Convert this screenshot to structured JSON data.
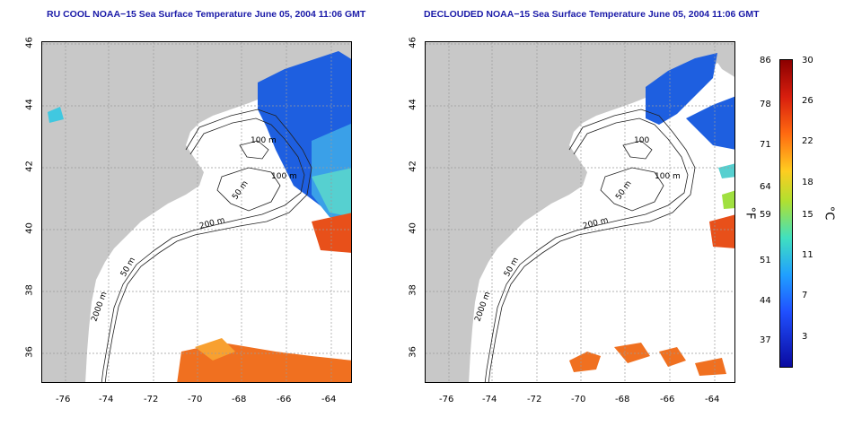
{
  "left": {
    "title": "RU COOL NOAA−15 Sea Surface Temperature June 05, 2004 11:06 GMT"
  },
  "right": {
    "title": "DECLOUDED NOAA−15 Sea Surface Temperature June 05, 2004 11:06 GMT"
  },
  "axes": {
    "x_ticks": [
      "-76",
      "-74",
      "-72",
      "-70",
      "-68",
      "-66",
      "-64"
    ],
    "y_ticks": [
      "46",
      "44",
      "42",
      "40",
      "38",
      "36"
    ]
  },
  "contours": {
    "labels_left": [
      "100 m",
      "100 m",
      "50 m",
      "200 m",
      "50 m",
      "2000 m"
    ],
    "labels_right": [
      "100",
      "100 m",
      "50 m",
      "200 m",
      "50 m",
      "2000 m"
    ]
  },
  "colorbar": {
    "fahrenheit": [
      "86",
      "78",
      "71",
      "64",
      "59",
      "51",
      "44",
      "37"
    ],
    "celsius": [
      "30",
      "26",
      "22",
      "18",
      "15",
      "11",
      "7",
      "3"
    ],
    "unit_f": "°F",
    "unit_c": "°C"
  },
  "colors": {
    "land": "#c8c8c8",
    "title": "#1a1aa8",
    "grid": "#9a9a9a"
  }
}
